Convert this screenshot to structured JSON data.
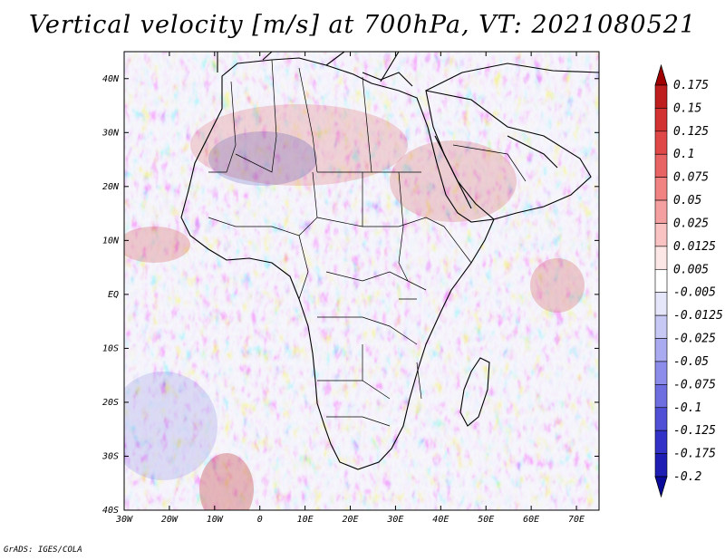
{
  "title": "Vertical velocity [m/s] at 700hPa, VT: 2021080521",
  "credit": "GrADS: IGES/COLA",
  "lat_labels": [
    "40N",
    "30N",
    "20N",
    "10N",
    "EQ",
    "10S",
    "20S",
    "30S",
    "40S"
  ],
  "lat_values": [
    40,
    30,
    20,
    10,
    0,
    -10,
    -20,
    -30,
    -40
  ],
  "lon_labels": [
    "30W",
    "20W",
    "10W",
    "0",
    "10E",
    "20E",
    "30E",
    "40E",
    "50E",
    "60E",
    "70E"
  ],
  "lon_values": [
    -30,
    -20,
    -10,
    0,
    10,
    20,
    30,
    40,
    50,
    60,
    70
  ],
  "map_extent": {
    "lon_min": -30,
    "lon_max": 75,
    "lat_min": -40,
    "lat_max": 45
  },
  "colorbar": {
    "labels": [
      "0.175",
      "0.15",
      "0.125",
      "0.1",
      "0.075",
      "0.05",
      "0.025",
      "0.0125",
      "0.005",
      "-0.005",
      "-0.0125",
      "-0.025",
      "-0.05",
      "-0.075",
      "-0.1",
      "-0.125",
      "-0.175",
      "-0.2"
    ],
    "colors": [
      "#a00000",
      "#be1e1e",
      "#d23232",
      "#e04848",
      "#e86464",
      "#f08282",
      "#f5a0a0",
      "#fac3c3",
      "#fde6e6",
      "#ffffff",
      "#e6e6fa",
      "#c8c8f5",
      "#aaaaf0",
      "#8c8ceb",
      "#6e6ee1",
      "#5050d7",
      "#3232c8",
      "#1e1eb4",
      "#0a0a9b"
    ]
  }
}
